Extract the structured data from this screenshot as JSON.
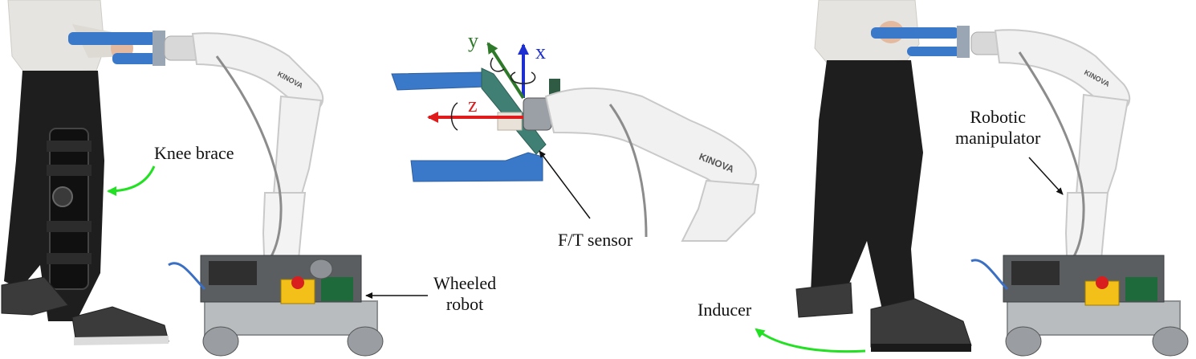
{
  "labels": {
    "knee_brace": "Knee brace",
    "ft_sensor": "F/T sensor",
    "wheeled_robot_line1": "Wheeled",
    "wheeled_robot_line2": "robot",
    "robotic_manipulator_line1": "Robotic",
    "robotic_manipulator_line2": "manipulator",
    "inducer": "Inducer"
  },
  "axes": {
    "x": "x",
    "y": "y",
    "z": "z"
  },
  "brand": "KINOVA",
  "colors": {
    "arm": "#f1f1f1",
    "handle": "#3a78c9",
    "pants": "#1e1e1e",
    "sweater": "#e6e4e0",
    "base": "#b9bcbf",
    "x_axis": "#1d2fd0",
    "y_axis": "#2f7a2a",
    "z_axis": "#e01b1b",
    "callout_green": "#22e022"
  }
}
